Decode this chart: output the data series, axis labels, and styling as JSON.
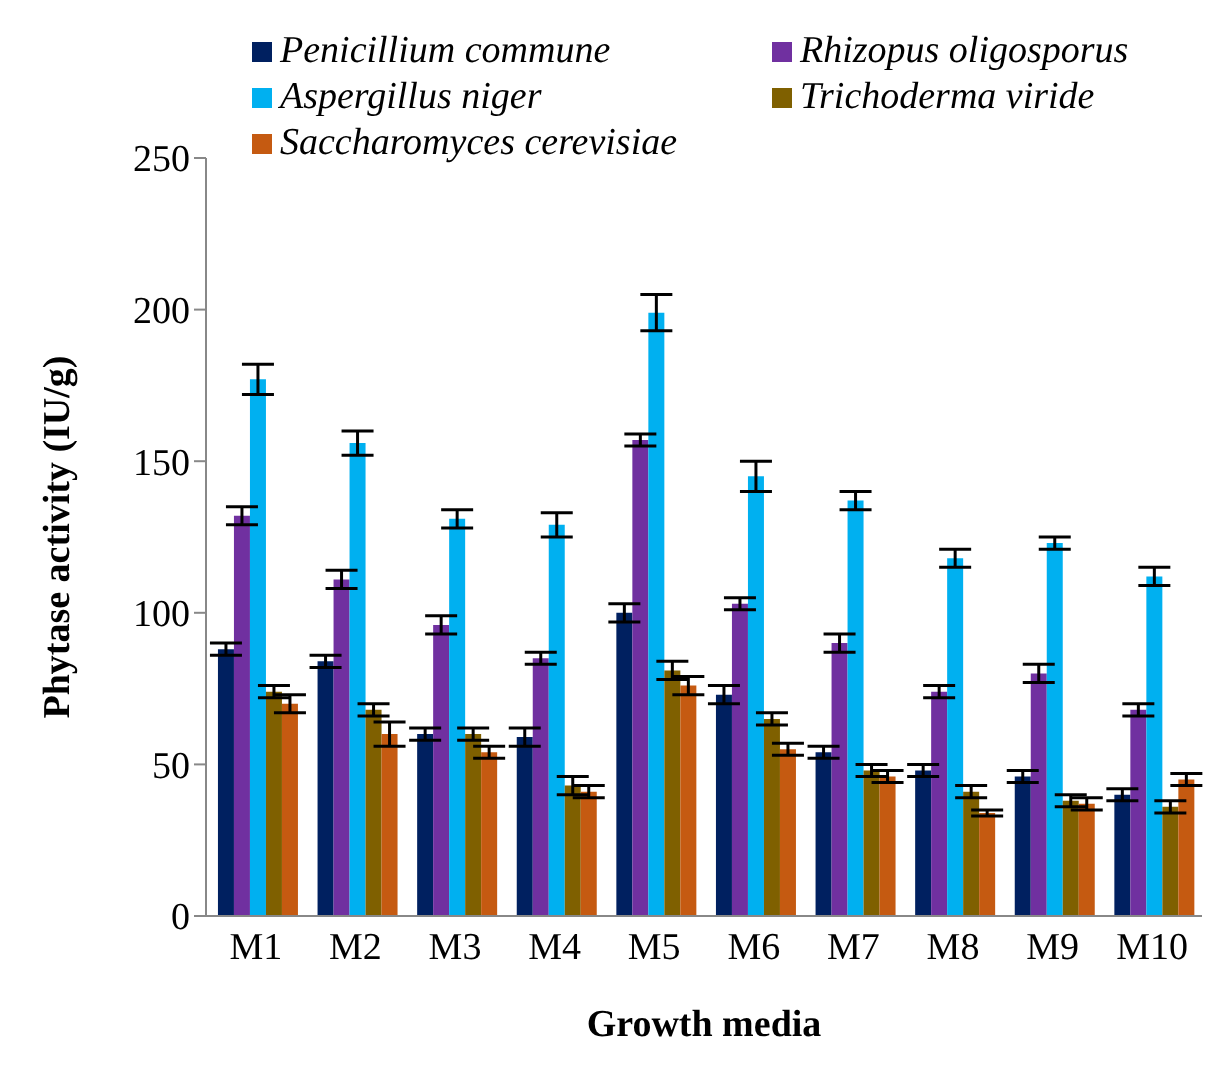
{
  "chart_data": {
    "type": "bar",
    "xlabel": "Growth media",
    "ylabel": "Phytase activity (IU/g)",
    "categories": [
      "M1",
      "M2",
      "M3",
      "M4",
      "M5",
      "M6",
      "M7",
      "M8",
      "M9",
      "M10"
    ],
    "series": [
      {
        "name": "Penicillium commune",
        "color": "#002060",
        "values": [
          88,
          84,
          60,
          59,
          100,
          73,
          54,
          48,
          46,
          40
        ],
        "errors": [
          2,
          2,
          2,
          3,
          3,
          3,
          2,
          2,
          2,
          2
        ]
      },
      {
        "name": "Rhizopus oligosporus",
        "color": "#7030a0",
        "values": [
          132,
          111,
          96,
          85,
          157,
          103,
          90,
          74,
          80,
          68
        ],
        "errors": [
          3,
          3,
          3,
          2,
          2,
          2,
          3,
          2,
          3,
          2
        ]
      },
      {
        "name": "Aspergillus niger",
        "color": "#00b0f0",
        "values": [
          177,
          156,
          131,
          129,
          199,
          145,
          137,
          118,
          123,
          112
        ],
        "errors": [
          5,
          4,
          3,
          4,
          6,
          5,
          3,
          3,
          2,
          3
        ]
      },
      {
        "name": "Trichoderma viride",
        "color": "#7f6000",
        "values": [
          74,
          68,
          60,
          43,
          81,
          65,
          48,
          41,
          38,
          36
        ],
        "errors": [
          2,
          2,
          2,
          3,
          3,
          2,
          2,
          2,
          2,
          2
        ]
      },
      {
        "name": "Saccharomyces cerevisiae",
        "color": "#c55a11",
        "values": [
          70,
          60,
          54,
          41,
          76,
          55,
          46,
          34,
          37,
          45
        ],
        "errors": [
          3,
          4,
          2,
          2,
          3,
          2,
          2,
          1,
          2,
          2
        ]
      }
    ],
    "ylim": [
      0,
      250
    ],
    "yticks": [
      0,
      50,
      100,
      150,
      200,
      250
    ],
    "legend": "top"
  }
}
